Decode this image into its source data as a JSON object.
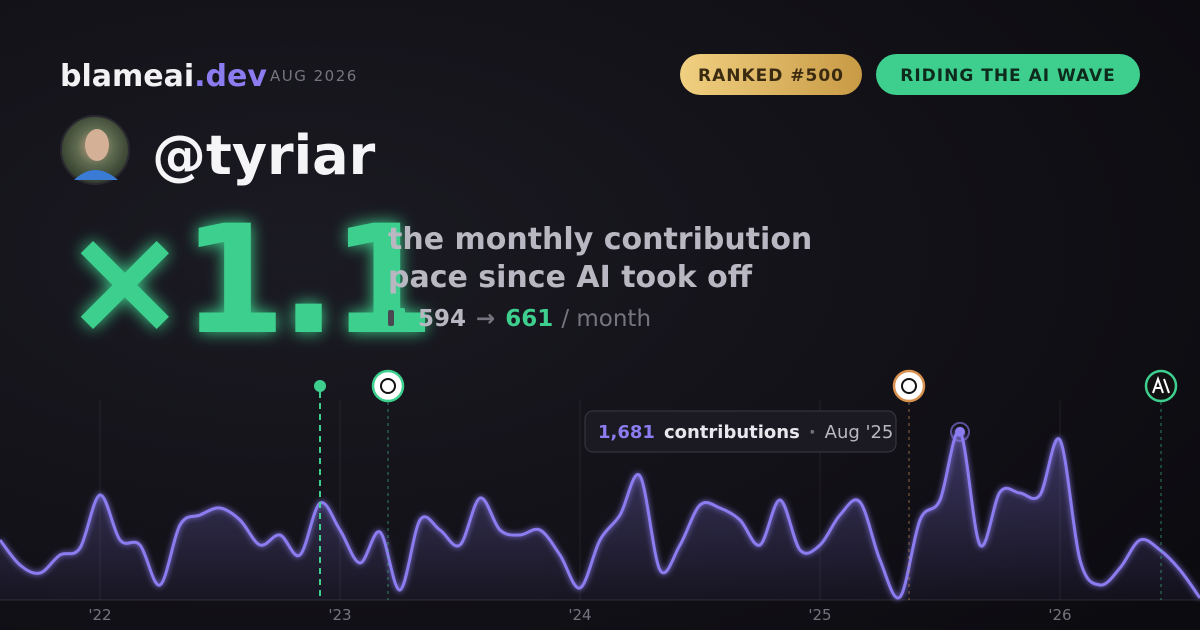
{
  "header": {
    "brand": "blameai",
    "brand_suffix": ".dev",
    "period": "AUG 2026",
    "badges": [
      "RANKED #500",
      "RIDING THE AI WAVE"
    ]
  },
  "profile": {
    "handle": "@tyriar"
  },
  "stat": {
    "multiplier": "×1.1",
    "caption": [
      "the monthly contribution",
      "pace since AI took off"
    ],
    "before": "594",
    "arrow": "→",
    "after": "661",
    "unit": "/ month"
  },
  "chart_data": {
    "type": "area",
    "color": "#8b7cf0",
    "categories": [
      null,
      null,
      null,
      null,
      null,
      "'22",
      null,
      null,
      null,
      null,
      null,
      null,
      null,
      null,
      null,
      null,
      null,
      "'23",
      null,
      null,
      null,
      null,
      null,
      null,
      null,
      null,
      null,
      null,
      null,
      "'24",
      null,
      null,
      null,
      null,
      null,
      null,
      null,
      null,
      null,
      null,
      null,
      "'25",
      null,
      null,
      null,
      null,
      null,
      null,
      null,
      null,
      null,
      null,
      null,
      "'26",
      null,
      null,
      null,
      null,
      null,
      null,
      null
    ],
    "values": [
      600,
      350,
      270,
      450,
      520,
      1050,
      600,
      550,
      150,
      750,
      850,
      920,
      800,
      550,
      650,
      450,
      970,
      700,
      370,
      680,
      100,
      800,
      700,
      550,
      1020,
      700,
      650,
      700,
      450,
      120,
      600,
      850,
      1240,
      300,
      550,
      950,
      920,
      800,
      550,
      1000,
      500,
      550,
      850,
      980,
      400,
      30,
      800,
      1000,
      1681,
      550,
      1080,
      1070,
      1050,
      1600,
      400,
      150,
      320,
      600,
      500,
      300,
      20
    ],
    "tooltip": {
      "value": "1,681",
      "text": "contributions",
      "sep": "·",
      "date": "Aug '25"
    }
  }
}
